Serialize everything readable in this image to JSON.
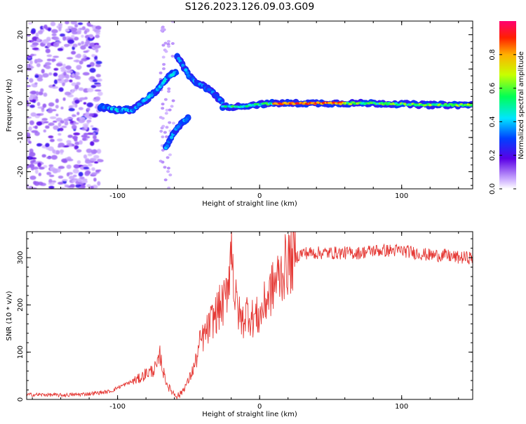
{
  "title": "S126.2023.126.09.03.G09",
  "chart_data": [
    {
      "type": "heatmap",
      "xlabel": "Height of straight line (km)",
      "ylabel": "Frequency (Hz)",
      "xlim": [
        -164,
        150
      ],
      "ylim": [
        -25,
        24
      ],
      "xticks": [
        -100,
        0,
        100
      ],
      "yticks": [
        -20,
        -10,
        0,
        10,
        20
      ],
      "colorbar": {
        "label": "Normalized spectral amplitude",
        "range": [
          0,
          1
        ],
        "ticks": [
          0.0,
          0.2,
          0.4,
          0.6,
          0.8
        ]
      },
      "tones": [
        {
          "x": [
            -112,
            -100,
            -90,
            -80,
            -72,
            -64,
            -58
          ],
          "y": [
            -1,
            -2,
            -2,
            1,
            4,
            8,
            9
          ],
          "amp": 0.45
        },
        {
          "x": [
            -58,
            -50,
            -44,
            -36,
            -30,
            -26
          ],
          "y": [
            14,
            8,
            6,
            4,
            2,
            0
          ],
          "amp": 0.4
        },
        {
          "x": [
            -66,
            -58,
            -50
          ],
          "y": [
            -13,
            -7,
            -4
          ],
          "amp": 0.4
        },
        {
          "x": [
            -26,
            -15,
            -5,
            10,
            40,
            80,
            120,
            150
          ],
          "y": [
            -1,
            -1,
            -0.5,
            0,
            0,
            0,
            -0.5,
            -0.5
          ],
          "amp": 0.85
        }
      ]
    },
    {
      "type": "line",
      "xlabel": "Height of straight line (km)",
      "ylabel": "SNR (10 * v/v)",
      "xlim": [
        -164,
        150
      ],
      "ylim": [
        0,
        355
      ],
      "xticks": [
        -100,
        0,
        100
      ],
      "yticks": [
        0,
        100,
        200,
        300
      ],
      "series": [
        {
          "name": "SNR",
          "color": "#e53935",
          "x": [
            -164,
            -150,
            -140,
            -130,
            -120,
            -110,
            -104,
            -100,
            -96,
            -92,
            -88,
            -84,
            -80,
            -76,
            -72,
            -70,
            -68,
            -66,
            -64,
            -62,
            -60,
            -58,
            -56,
            -54,
            -52,
            -50,
            -48,
            -46,
            -44,
            -42,
            -40,
            -38,
            -36,
            -34,
            -32,
            -30,
            -28,
            -26,
            -24,
            -22,
            -20,
            -19,
            -18,
            -16,
            -14,
            -12,
            -10,
            -8,
            -6,
            -4,
            -2,
            0,
            2,
            4,
            6,
            8,
            10,
            12,
            14,
            16,
            18,
            20,
            25,
            30,
            35,
            40,
            50,
            60,
            70,
            80,
            90,
            100,
            110,
            120,
            130,
            140,
            150
          ],
          "values": [
            10,
            10,
            9,
            10,
            12,
            15,
            18,
            25,
            30,
            35,
            40,
            45,
            55,
            60,
            70,
            95,
            60,
            40,
            25,
            18,
            12,
            8,
            10,
            20,
            30,
            40,
            55,
            70,
            90,
            120,
            130,
            140,
            150,
            165,
            175,
            185,
            195,
            200,
            210,
            260,
            320,
            330,
            220,
            200,
            175,
            165,
            180,
            190,
            170,
            175,
            175,
            175,
            190,
            205,
            220,
            230,
            240,
            255,
            260,
            270,
            280,
            290,
            300,
            310,
            310,
            310,
            310,
            310,
            310,
            315,
            315,
            315,
            310,
            305,
            305,
            300,
            300
          ]
        }
      ]
    }
  ]
}
